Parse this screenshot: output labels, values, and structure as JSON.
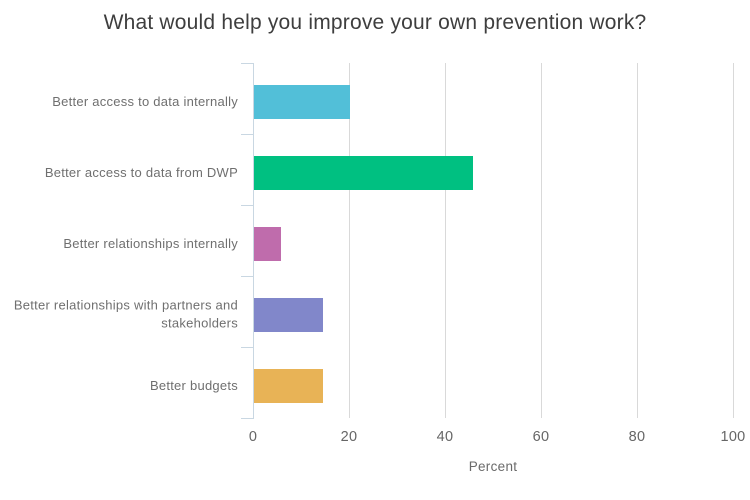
{
  "title": "What would help you improve your own prevention work?",
  "chart_data": {
    "type": "bar",
    "orientation": "horizontal",
    "title": "What would help you improve your own prevention work?",
    "categories": [
      "Better access to data internally",
      "Better access to data from DWP",
      "Better relationships internally",
      "Better relationships with partners and stakeholders",
      "Better budgets"
    ],
    "values": [
      20,
      45.7,
      5.7,
      14.3,
      14.3
    ],
    "bar_colors": [
      "#52BFD8",
      "#00C081",
      "#BF6CAC",
      "#8187CA",
      "#E8B356"
    ],
    "xlabel": "Percent",
    "ylabel": "",
    "xlim": [
      0,
      100
    ],
    "x_ticks": [
      0,
      20,
      40,
      60,
      80,
      100
    ],
    "grid": "vertical",
    "legend": "none"
  },
  "styles": {
    "gridline_color": "#d9d9d9",
    "axis_color": "#c9d7e2",
    "title_color": "#3e3e3e",
    "category_label_color": "#6f6f6f",
    "tick_label_color": "#666666",
    "background": "#ffffff"
  }
}
